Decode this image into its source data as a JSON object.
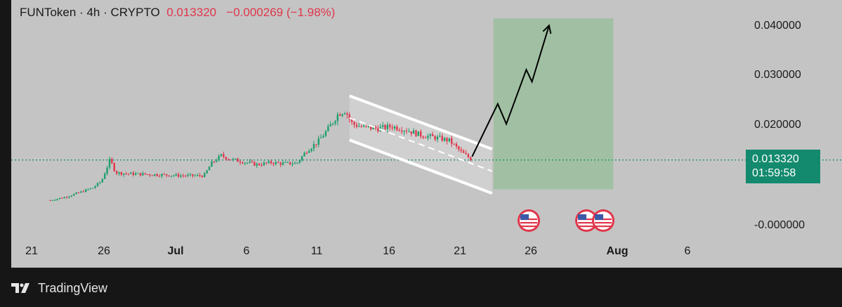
{
  "header": {
    "symbol": "FUNToken",
    "interval": "4h",
    "exchange": "CRYPTO",
    "price": "0.013320",
    "change": "−0.000269",
    "change_pct": "(−1.98%)",
    "separator": "·"
  },
  "price_tag": {
    "price": "0.013320",
    "countdown": "01:59:58",
    "color": "#138a6e"
  },
  "colors": {
    "background": "#c4c4c4",
    "up": "#1e9e6c",
    "down": "#e0364b",
    "target_zone": "#9bbf9e",
    "channel_lines": "#ffffff",
    "projection": "#000000"
  },
  "footer": {
    "brand": "TradingView",
    "logo_icon": "tradingview-logo-icon"
  },
  "event_icons": [
    "us-flag-icon",
    "us-flag-icon",
    "us-flag-icon"
  ],
  "chart_data": {
    "type": "candlestick",
    "title": "FUNToken · 4h · CRYPTO",
    "xlabel": "",
    "ylabel": "",
    "y_ticks": [
      "0.040000",
      "0.030000",
      "0.020000",
      "-0.000000"
    ],
    "x_ticks": [
      "21",
      "26",
      "Jul",
      "6",
      "11",
      "16",
      "21",
      "26",
      "Aug",
      "6"
    ],
    "ylim": [
      -0.003,
      0.045
    ],
    "current_price": 0.01332,
    "grid": false,
    "close_path": [
      {
        "x": 0,
        "y": 0.0053
      },
      {
        "x": 1,
        "y": 0.0059
      },
      {
        "x": 2,
        "y": 0.0068
      },
      {
        "x": 3,
        "y": 0.0078
      },
      {
        "x": 3.6,
        "y": 0.0091
      },
      {
        "x": 4.2,
        "y": 0.0134
      },
      {
        "x": 4.6,
        "y": 0.0108
      },
      {
        "x": 5.4,
        "y": 0.0106
      },
      {
        "x": 6.5,
        "y": 0.0105
      },
      {
        "x": 7.5,
        "y": 0.0104
      },
      {
        "x": 8.5,
        "y": 0.0103
      },
      {
        "x": 9.5,
        "y": 0.0102
      },
      {
        "x": 10.8,
        "y": 0.0102
      },
      {
        "x": 11.3,
        "y": 0.0126
      },
      {
        "x": 12,
        "y": 0.0142
      },
      {
        "x": 12.6,
        "y": 0.0135
      },
      {
        "x": 13.5,
        "y": 0.013
      },
      {
        "x": 14.5,
        "y": 0.0124
      },
      {
        "x": 15.5,
        "y": 0.0128
      },
      {
        "x": 16.5,
        "y": 0.0126
      },
      {
        "x": 17.3,
        "y": 0.0127
      },
      {
        "x": 18,
        "y": 0.0152
      },
      {
        "x": 18.8,
        "y": 0.017
      },
      {
        "x": 19.5,
        "y": 0.0195
      },
      {
        "x": 20.2,
        "y": 0.0225
      },
      {
        "x": 20.7,
        "y": 0.0232
      },
      {
        "x": 21.2,
        "y": 0.0205
      },
      {
        "x": 22,
        "y": 0.0198
      },
      {
        "x": 23,
        "y": 0.0196
      },
      {
        "x": 24,
        "y": 0.02
      },
      {
        "x": 25,
        "y": 0.0193
      },
      {
        "x": 26,
        "y": 0.0183
      },
      {
        "x": 27,
        "y": 0.0178
      },
      {
        "x": 28,
        "y": 0.0172
      },
      {
        "x": 28.8,
        "y": 0.015
      },
      {
        "x": 29.6,
        "y": 0.01332
      }
    ],
    "drawings": {
      "channel_upper": [
        {
          "x": 21.0,
          "y": 0.0261
        },
        {
          "x": 31.0,
          "y": 0.0155
        }
      ],
      "channel_mid": [
        {
          "x": 21.0,
          "y": 0.0217
        },
        {
          "x": 31.0,
          "y": 0.0111
        }
      ],
      "channel_lower": [
        {
          "x": 21.0,
          "y": 0.0173
        },
        {
          "x": 31.0,
          "y": 0.0067
        }
      ],
      "projection_arrow": [
        {
          "x": 29.6,
          "y": 0.014
        },
        {
          "x": 31.4,
          "y": 0.0245
        },
        {
          "x": 32.0,
          "y": 0.0205
        },
        {
          "x": 33.4,
          "y": 0.0313
        },
        {
          "x": 33.8,
          "y": 0.0289
        },
        {
          "x": 35.0,
          "y": 0.0401
        }
      ],
      "target_zone": {
        "x0": 31.1,
        "x1": 39.5,
        "y0": 0.0075,
        "y1": 0.0415
      }
    }
  }
}
